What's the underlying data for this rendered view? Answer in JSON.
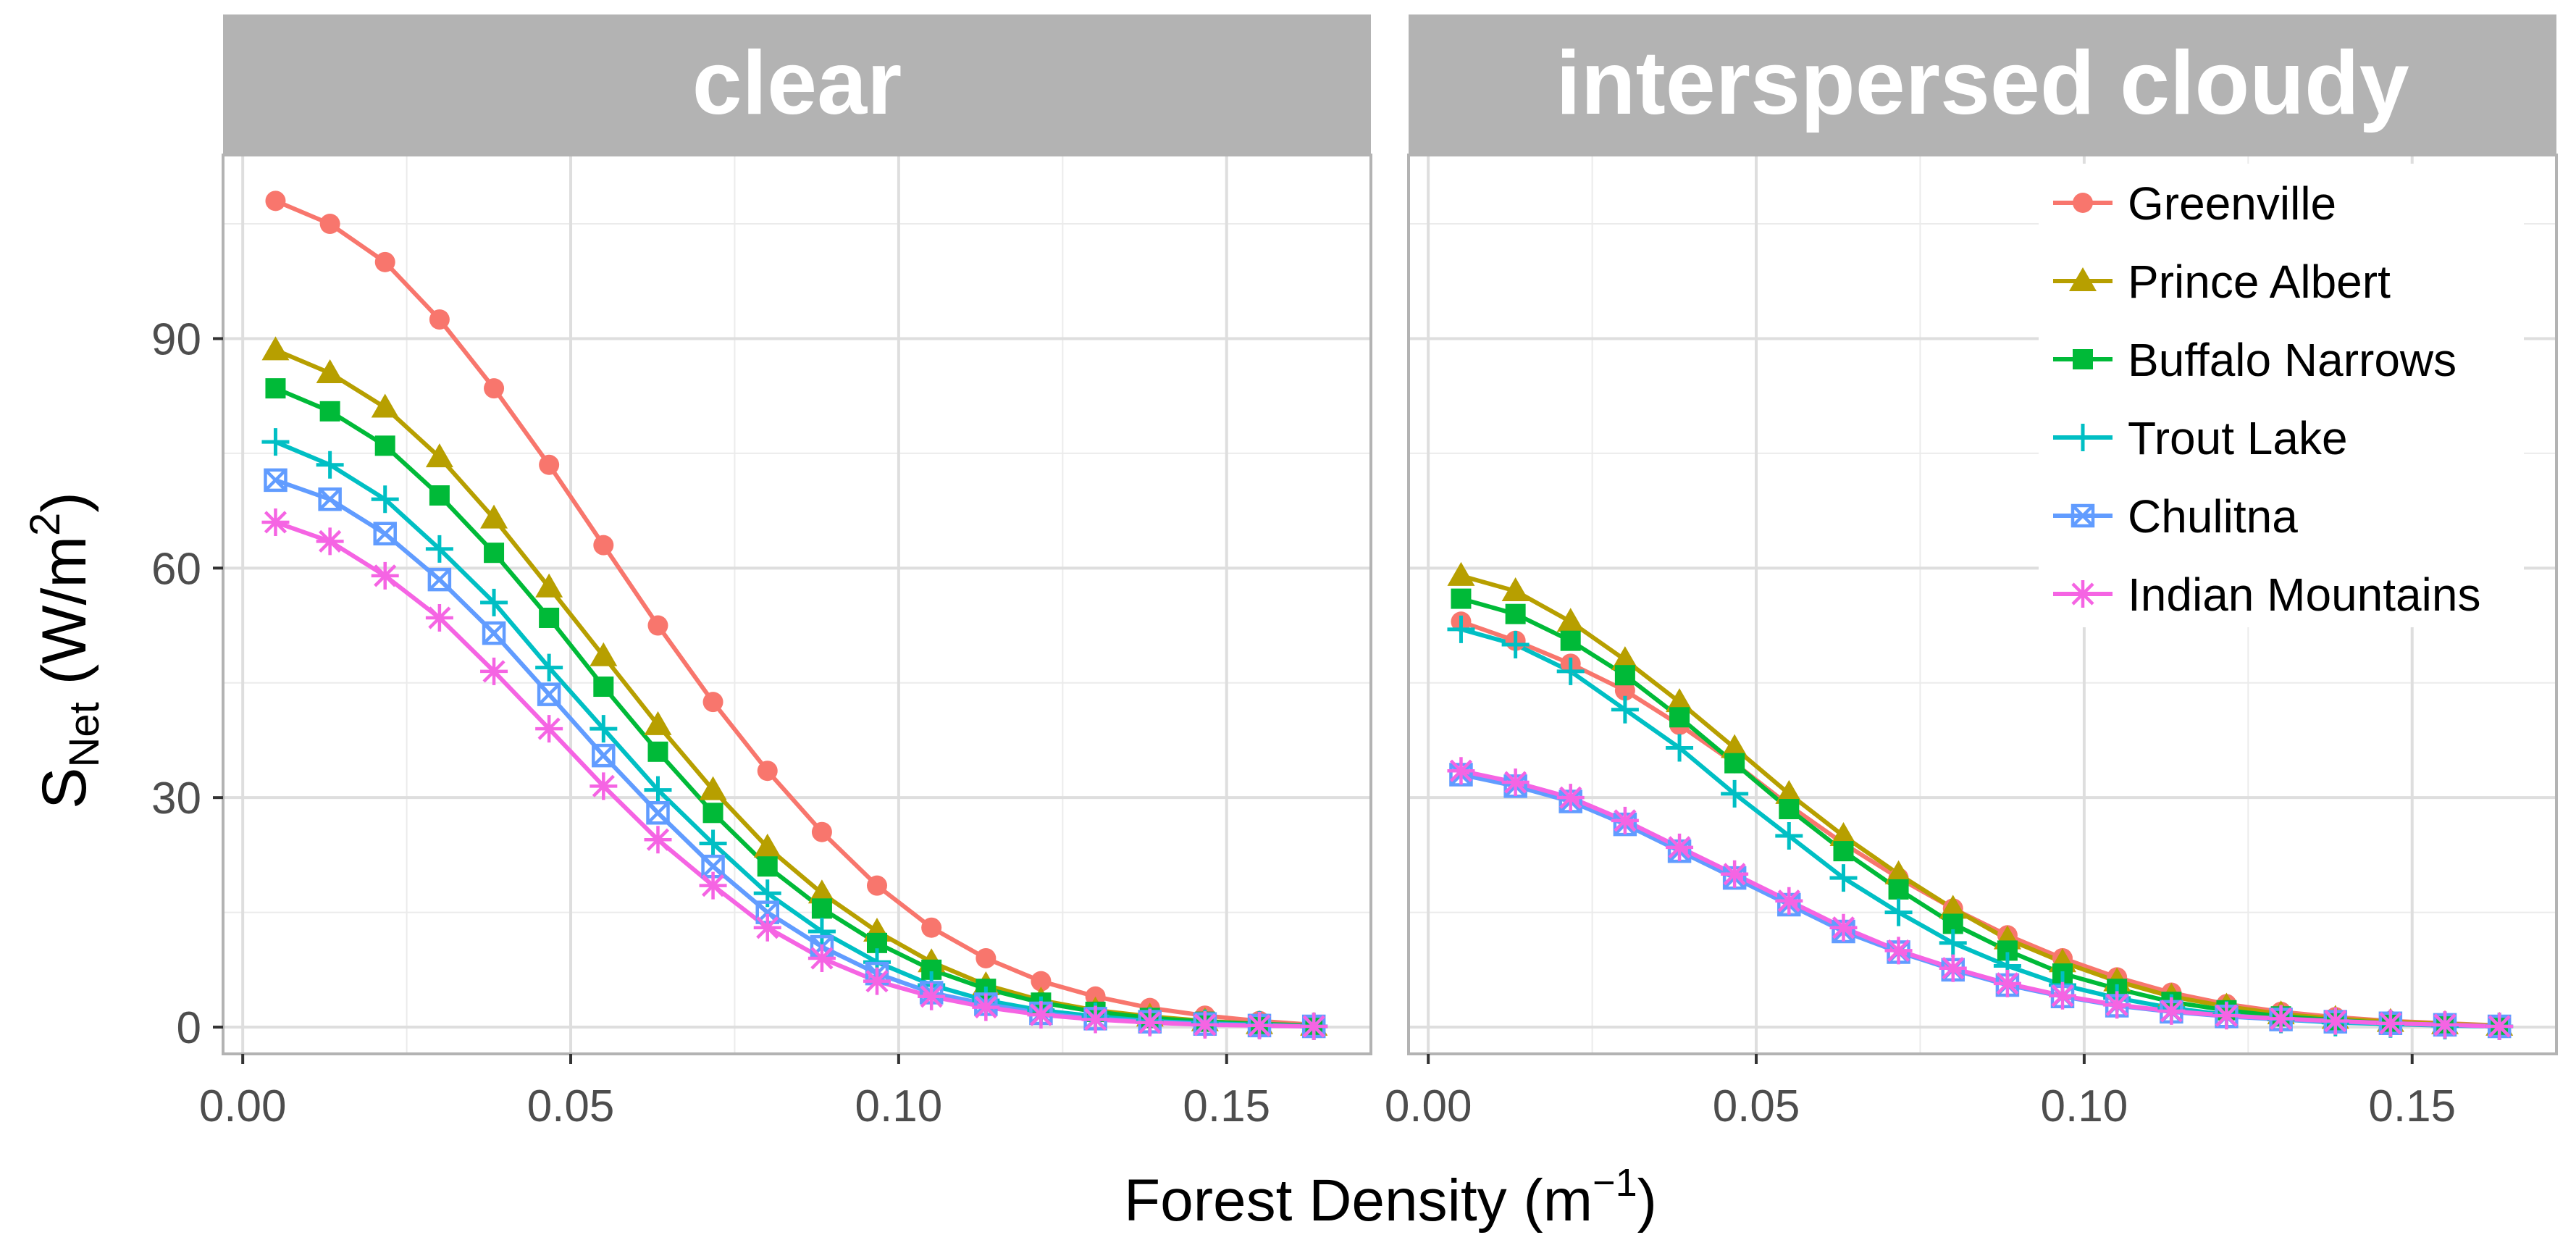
{
  "chart_data": {
    "type": "line",
    "xlabel": "Forest Density (m⁻¹)",
    "ylabel": "S_Net (W/m²)",
    "xlabel_parts": {
      "text": "Forest Density (m",
      "sup": "−1",
      "close": ")"
    },
    "ylabel_parts": {
      "s": "S",
      "sub": "Net",
      "mid": " (W/m",
      "sup": "2",
      "close": ")"
    },
    "xlim": [
      -0.003,
      0.172
    ],
    "ylim": [
      -3.5,
      114
    ],
    "x_ticks": [
      0.0,
      0.05,
      0.1,
      0.15
    ],
    "x_tick_labels": [
      "0.00",
      "0.05",
      "0.10",
      "0.15"
    ],
    "y_ticks": [
      0,
      30,
      60,
      90
    ],
    "y_tick_labels": [
      "0",
      "30",
      "60",
      "90"
    ],
    "x": [
      0.005,
      0.0133,
      0.0217,
      0.03,
      0.0383,
      0.0467,
      0.055,
      0.0633,
      0.0717,
      0.08,
      0.0883,
      0.0967,
      0.105,
      0.1133,
      0.1217,
      0.13,
      0.1383,
      0.1467,
      0.155,
      0.1633
    ],
    "legend": {
      "position": "top-right",
      "panel": "interspersed cloudy"
    },
    "panels": [
      {
        "title": "clear",
        "series": [
          {
            "name": "Greenville",
            "color": "#F8766D",
            "marker": "circle",
            "values": [
              108,
              105,
              100,
              92.5,
              83.5,
              73.5,
              63,
              52.5,
              42.5,
              33.5,
              25.5,
              18.5,
              13,
              9,
              6,
              4,
              2.5,
              1.5,
              0.8,
              0.3
            ]
          },
          {
            "name": "Prince Albert",
            "color": "#B79F00",
            "marker": "triangle",
            "values": [
              88.5,
              85.5,
              81,
              74.5,
              66.5,
              57.5,
              48.5,
              39.5,
              31,
              23.5,
              17.5,
              12.5,
              8.5,
              5.5,
              3.5,
              2.2,
              1.4,
              0.8,
              0.4,
              0.2
            ]
          },
          {
            "name": "Buffalo Narrows",
            "color": "#00BA38",
            "marker": "square",
            "values": [
              83.5,
              80.5,
              76,
              69.5,
              62,
              53.5,
              44.5,
              36,
              28,
              21,
              15.5,
              11,
              7.5,
              5,
              3.2,
              2,
              1.2,
              0.7,
              0.4,
              0.2
            ]
          },
          {
            "name": "Trout Lake",
            "color": "#00BFC4",
            "marker": "plus",
            "values": [
              76.5,
              73.5,
              69,
              62.5,
              55.5,
              47,
              39,
              31,
              24,
              17.5,
              12.5,
              8.5,
              5.5,
              3.5,
              2.2,
              1.4,
              0.8,
              0.5,
              0.3,
              0.1
            ]
          },
          {
            "name": "Chulitna",
            "color": "#619CFF",
            "marker": "boxx",
            "values": [
              71.5,
              69,
              64.5,
              58.5,
              51.5,
              43.5,
              35.5,
              28,
              21,
              15,
              10.5,
              7,
              4.5,
              3,
              1.8,
              1.1,
              0.7,
              0.4,
              0.2,
              0.1
            ]
          },
          {
            "name": "Indian Mountains",
            "color": "#F564E3",
            "marker": "asterisk",
            "values": [
              66,
              63.5,
              59,
              53.5,
              46.5,
              39,
              31.5,
              24.5,
              18.5,
              13,
              9,
              6,
              4,
              2.6,
              1.6,
              1,
              0.6,
              0.3,
              0.2,
              0.1
            ]
          }
        ]
      },
      {
        "title": "interspersed cloudy",
        "series": [
          {
            "name": "Greenville",
            "color": "#F8766D",
            "marker": "circle",
            "values": [
              53,
              50.5,
              47.5,
              44,
              39.5,
              34.5,
              29,
              24,
              19.5,
              15.5,
              12,
              9,
              6.5,
              4.5,
              3,
              2,
              1.3,
              0.8,
              0.5,
              0.2
            ]
          },
          {
            "name": "Prince Albert",
            "color": "#B79F00",
            "marker": "triangle",
            "values": [
              59,
              57,
              53,
              48,
              42.5,
              36.5,
              30.5,
              25,
              20,
              15.5,
              11.5,
              8.5,
              6,
              4,
              2.7,
              1.7,
              1.1,
              0.7,
              0.4,
              0.2
            ]
          },
          {
            "name": "Buffalo Narrows",
            "color": "#00BA38",
            "marker": "square",
            "values": [
              56,
              54,
              50.5,
              46,
              40.5,
              34.5,
              28.5,
              23,
              18,
              13.5,
              10,
              7,
              5,
              3.3,
              2.2,
              1.4,
              0.9,
              0.5,
              0.3,
              0.1
            ]
          },
          {
            "name": "Trout Lake",
            "color": "#00BFC4",
            "marker": "plus",
            "values": [
              52,
              50,
              46.5,
              41.5,
              36.5,
              30.5,
              25,
              19.5,
              15,
              11,
              8,
              5.5,
              3.8,
              2.5,
              1.6,
              1,
              0.6,
              0.4,
              0.2,
              0.1
            ]
          },
          {
            "name": "Chulitna",
            "color": "#619CFF",
            "marker": "boxx",
            "values": [
              33,
              31.5,
              29.5,
              26.5,
              23,
              19.5,
              16,
              12.5,
              9.8,
              7.5,
              5.5,
              4,
              2.8,
              2,
              1.4,
              1,
              0.7,
              0.5,
              0.3,
              0.1
            ]
          },
          {
            "name": "Indian Mountains",
            "color": "#F564E3",
            "marker": "asterisk",
            "values": [
              33.5,
              32,
              30,
              27,
              23.5,
              20,
              16.5,
              13,
              10,
              7.7,
              5.7,
              4.1,
              2.9,
              2.1,
              1.5,
              1.1,
              0.8,
              0.5,
              0.3,
              0.1
            ]
          }
        ]
      }
    ]
  }
}
